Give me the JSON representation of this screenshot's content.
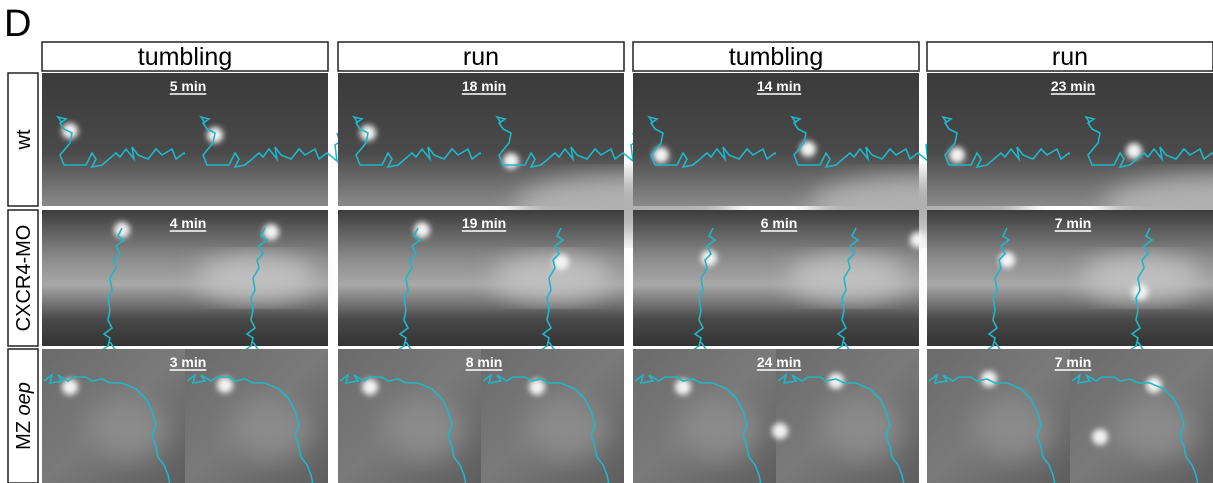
{
  "panel_label": "D",
  "columns": [
    "tumbling",
    "run",
    "tumbling",
    "run"
  ],
  "rows": [
    {
      "label": "wt",
      "times": [
        "5 min",
        "18 min",
        "14 min",
        "23 min"
      ]
    },
    {
      "label": "CXCR4-MO",
      "times": [
        "4 min",
        "19 min",
        "6 min",
        "7 min"
      ]
    },
    {
      "label": [
        "MZ ",
        "oep"
      ],
      "times": [
        "3 min",
        "8 min",
        "24 min",
        "7 min"
      ]
    }
  ]
}
